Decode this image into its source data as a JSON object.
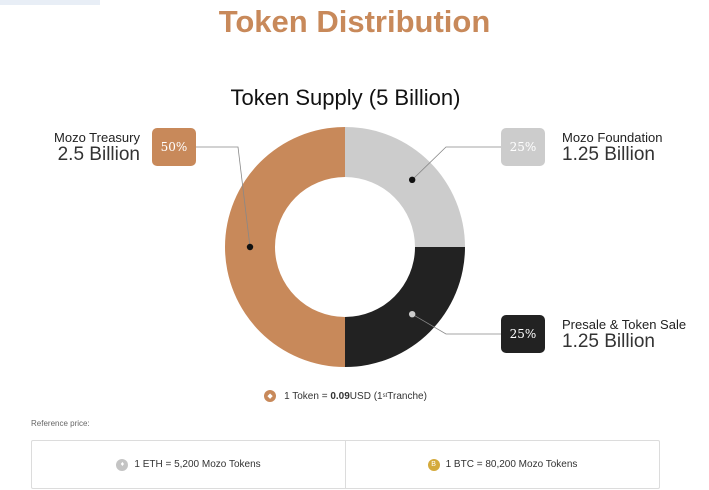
{
  "header": {
    "title": "Token Distribution"
  },
  "chart_data": {
    "type": "pie",
    "title": "Token Supply (5 Billion)",
    "categories": [
      "Mozo Treasury",
      "Mozo Foundation",
      "Presale & Token Sale"
    ],
    "values": [
      50,
      25,
      25
    ],
    "value_labels": [
      "2.5 Billion",
      "1.25 Billion",
      "1.25 Billion"
    ],
    "percent_labels": [
      "50%",
      "25%",
      "25%"
    ],
    "colors": [
      "#c8895a",
      "#cccccc",
      "#222222"
    ],
    "donut": true
  },
  "legend": {
    "icon": "mozo-coin-icon",
    "prefix": "1 Token = ",
    "price": "0.09",
    "unit": " USD (1",
    "sup": "st",
    "suffix": " Tranche)"
  },
  "reference": {
    "label": "Reference price:",
    "eth": {
      "icon": "eth-icon",
      "text": "1 ETH = 5,200 Mozo Tokens"
    },
    "btc": {
      "icon": "btc-icon",
      "symbol": "B",
      "text": "1 BTC = 80,200 Mozo Tokens"
    }
  }
}
